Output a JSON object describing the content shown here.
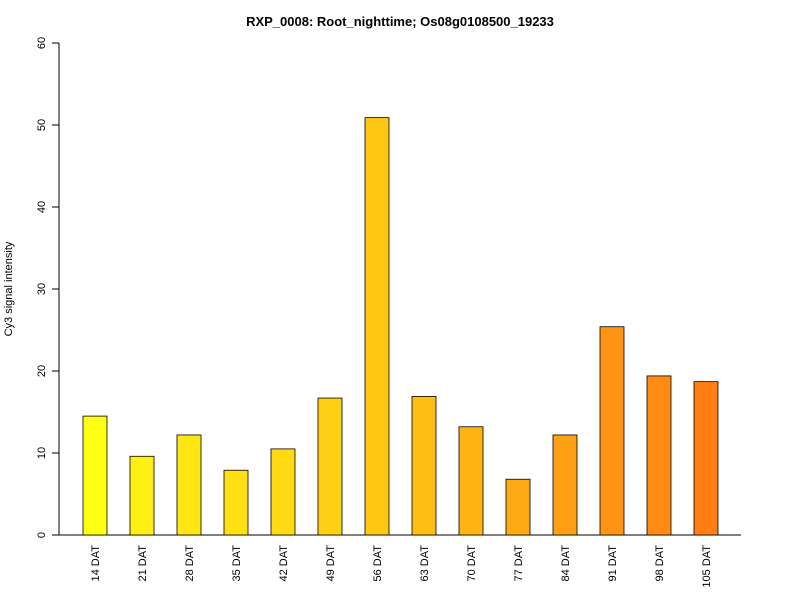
{
  "chart_data": {
    "type": "bar",
    "title": "RXP_0008: Root_nighttime; Os08g0108500_19233",
    "xlabel": "",
    "ylabel": "Cy3 signal intensity",
    "ylim": [
      0,
      60
    ],
    "yticks": [
      0,
      10,
      20,
      30,
      40,
      50,
      60
    ],
    "categories": [
      "14 DAT",
      "21 DAT",
      "28 DAT",
      "35 DAT",
      "42 DAT",
      "49 DAT",
      "56 DAT",
      "63 DAT",
      "70 DAT",
      "77 DAT",
      "84 DAT",
      "91 DAT",
      "98 DAT",
      "105 DAT"
    ],
    "values": [
      14.5,
      9.6,
      12.2,
      7.9,
      10.5,
      16.7,
      50.9,
      16.9,
      13.2,
      6.8,
      12.2,
      25.4,
      19.4,
      18.7
    ],
    "colors": [
      "#FFFF14",
      "#FFEF14",
      "#FFE514",
      "#FFE014",
      "#FFD914",
      "#FFCF14",
      "#FFC614",
      "#FFBE14",
      "#FFB414",
      "#FFAA14",
      "#FFA014",
      "#FF9414",
      "#FF8A14",
      "#FF7F14"
    ],
    "grid": false,
    "legend": "none"
  }
}
